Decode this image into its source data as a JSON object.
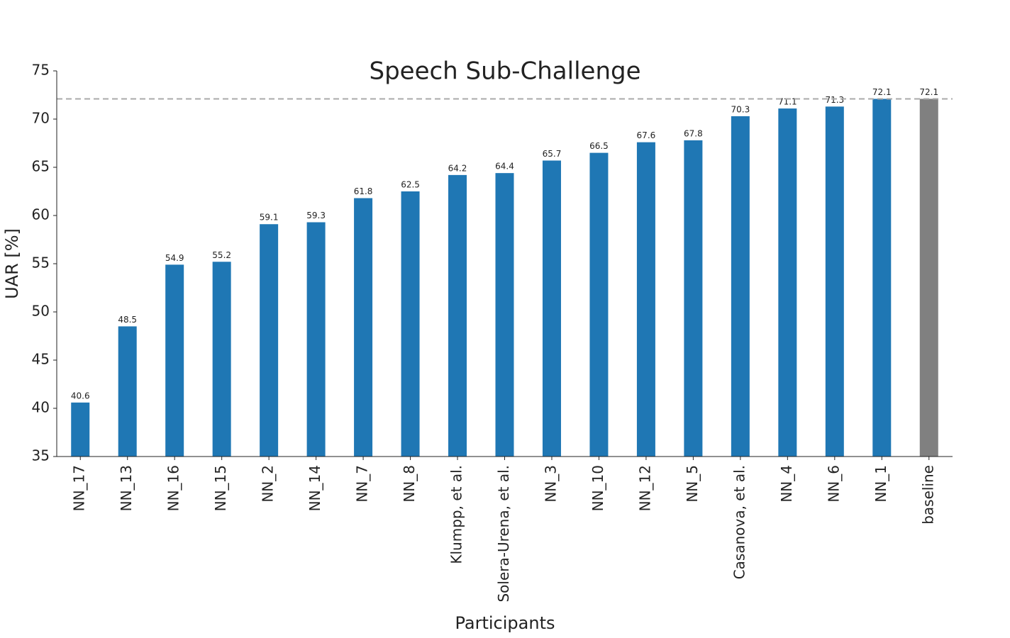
{
  "chart_data": {
    "type": "bar",
    "title": "Speech Sub-Challenge",
    "x_label": "Participants",
    "y_label": "UAR [%]",
    "categories": [
      "NN_17",
      "NN_13",
      "NN_16",
      "NN_15",
      "NN_2",
      "NN_14",
      "NN_7",
      "NN_8",
      "Klumpp, et al.",
      "Solera-Urena, et al.",
      "NN_3",
      "NN_10",
      "NN_12",
      "NN_5",
      "Casanova, et al.",
      "NN_4",
      "NN_6",
      "NN_1",
      "baseline"
    ],
    "values": [
      40.6,
      48.5,
      54.9,
      55.2,
      59.1,
      59.3,
      61.8,
      62.5,
      64.2,
      64.4,
      65.7,
      66.5,
      67.6,
      67.8,
      70.3,
      71.1,
      71.3,
      72.1,
      72.1
    ],
    "colors": [
      "#1f77b4",
      "#1f77b4",
      "#1f77b4",
      "#1f77b4",
      "#1f77b4",
      "#1f77b4",
      "#1f77b4",
      "#1f77b4",
      "#1f77b4",
      "#1f77b4",
      "#1f77b4",
      "#1f77b4",
      "#1f77b4",
      "#1f77b4",
      "#1f77b4",
      "#1f77b4",
      "#1f77b4",
      "#1f77b4",
      "#808080"
    ],
    "reference_line": 72.1,
    "reference_line_color": "#aaaaaa",
    "ylim": [
      35,
      75
    ],
    "yticks": [
      35,
      40,
      45,
      50,
      55,
      60,
      65,
      70,
      75
    ],
    "grid": false
  }
}
